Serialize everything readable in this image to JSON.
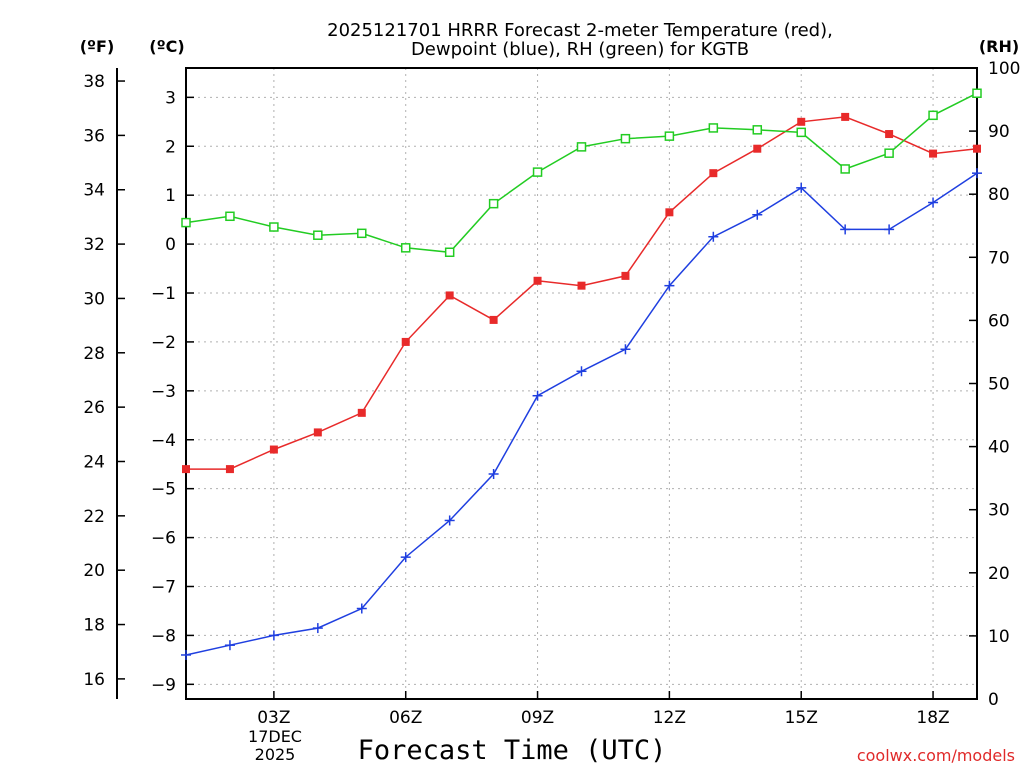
{
  "chart_data": {
    "type": "line",
    "title_line1": "2025121701 HRRR Forecast 2-meter Temperature (red),",
    "title_line2": "Dewpoint (blue), RH (green) for KGTB",
    "left_unit_f": "(ºF)",
    "left_unit_c": "(ºC)",
    "right_unit": "(RH)",
    "xlabel": "Forecast Time (UTC)",
    "credit": "coolwx.com/models",
    "x_ticks": [
      "03Z",
      "06Z",
      "09Z",
      "12Z",
      "15Z",
      "18Z"
    ],
    "date_label": [
      "17DEC",
      "2025"
    ],
    "f_ticks": [
      "16",
      "18",
      "20",
      "22",
      "24",
      "26",
      "28",
      "30",
      "32",
      "34",
      "36",
      "38"
    ],
    "c_ticks": [
      "-9",
      "-8",
      "-7",
      "-6",
      "-5",
      "-4",
      "-3",
      "-2",
      "-1",
      "0",
      "1",
      "2",
      "3"
    ],
    "rh_ticks": [
      "0",
      "10",
      "20",
      "30",
      "40",
      "50",
      "60",
      "70",
      "80",
      "90",
      "100"
    ],
    "x_hours": [
      1,
      2,
      3,
      4,
      5,
      6,
      7,
      8,
      9,
      10,
      11,
      12,
      13,
      14,
      15,
      16,
      17,
      18,
      19
    ],
    "xlim": [
      1,
      19
    ],
    "ylim_c": [
      -9.3,
      3.6
    ],
    "ylim_f": [
      15.26,
      38.48
    ],
    "ylim_rh": [
      0,
      100
    ],
    "colors": {
      "temperature": "#e82a2a",
      "dewpoint": "#1f3fe0",
      "rh": "#22cc22",
      "credit": "#e02a2a",
      "grid": "#b0b0b0"
    },
    "series": [
      {
        "name": "Temperature",
        "axis": "C",
        "marker": "filled-square",
        "values": [
          -4.6,
          -4.6,
          -4.2,
          -3.85,
          -3.45,
          -2.0,
          -1.05,
          -1.55,
          -0.75,
          -0.85,
          -0.65,
          0.65,
          1.45,
          1.95,
          2.5,
          2.6,
          2.25,
          1.85,
          1.95
        ]
      },
      {
        "name": "Dewpoint",
        "axis": "C",
        "marker": "plus",
        "values": [
          -8.4,
          -8.2,
          -8.0,
          -7.85,
          -7.45,
          -6.4,
          -5.65,
          -4.7,
          -3.1,
          -2.6,
          -2.15,
          -0.85,
          0.15,
          0.6,
          1.15,
          0.3,
          0.3,
          0.85,
          1.45
        ]
      },
      {
        "name": "RH",
        "axis": "RH",
        "marker": "open-square",
        "values": [
          75.5,
          76.5,
          74.8,
          73.5,
          73.8,
          71.5,
          70.8,
          78.5,
          83.5,
          87.5,
          88.8,
          89.2,
          90.5,
          90.2,
          89.8,
          84.0,
          86.5,
          92.5,
          96.0
        ]
      }
    ]
  }
}
